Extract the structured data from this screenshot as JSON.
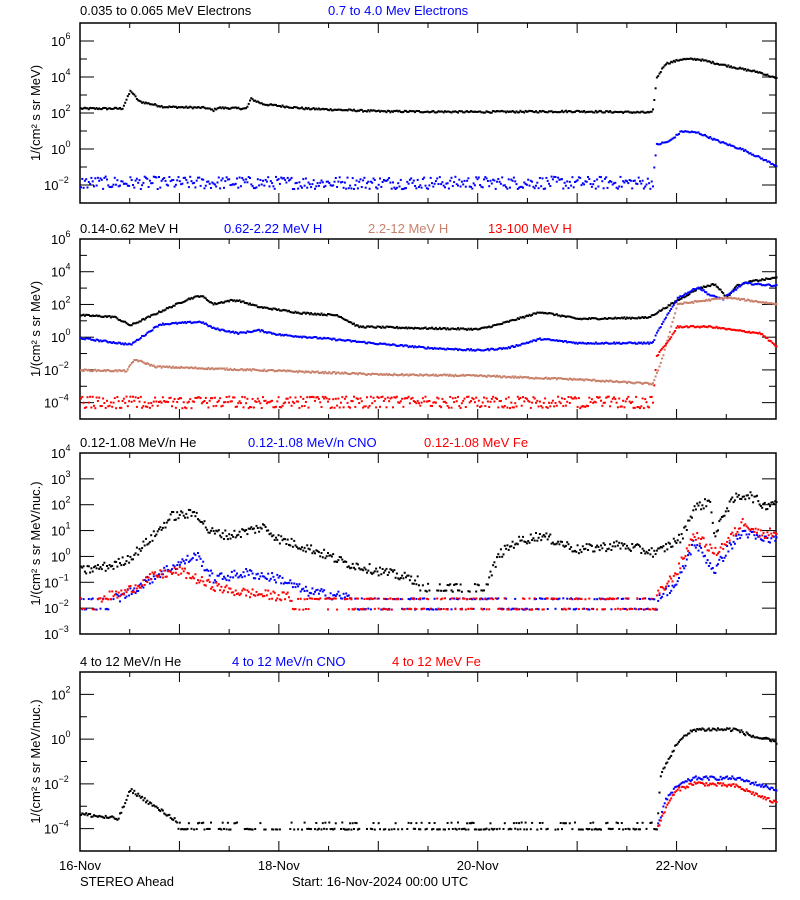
{
  "footer": {
    "spacecraft": "STEREO Ahead",
    "start": "Start: 16-Nov-2024 00:00 UTC"
  },
  "chart_data": [
    {
      "type": "scatter",
      "ylabel": "1/(cm² s sr MeV)",
      "yscale": "log",
      "ylim": [
        0.001,
        10000000
      ],
      "yticks_labeled": [
        6,
        4,
        2,
        0,
        -2
      ],
      "xlim": [
        "2024-11-16 00:00",
        "2024-11-23 00:00"
      ],
      "series": [
        {
          "name": "0.035 to 0.065 MeV Electrons",
          "color": "#000000",
          "points": [
            [
              "2024-11-16 00:00",
              200
            ],
            [
              "2024-11-16 10:00",
              200
            ],
            [
              "2024-11-16 12:00",
              2000
            ],
            [
              "2024-11-16 14:00",
              500
            ],
            [
              "2024-11-16 20:00",
              250
            ],
            [
              "2024-11-17 06:00",
              220
            ],
            [
              "2024-11-17 08:00",
              160
            ],
            [
              "2024-11-17 09:00",
              220
            ],
            [
              "2024-11-17 16:00",
              200
            ],
            [
              "2024-11-17 17:00",
              700
            ],
            [
              "2024-11-17 20:00",
              350
            ],
            [
              "2024-11-18 06:00",
              200
            ],
            [
              "2024-11-19 00:00",
              140
            ],
            [
              "2024-11-20 00:00",
              130
            ],
            [
              "2024-11-21 00:00",
              140
            ],
            [
              "2024-11-21 18:00",
              120
            ],
            [
              "2024-11-21 19:00",
              10000
            ],
            [
              "2024-11-21 21:00",
              60000
            ],
            [
              "2024-11-22 01:00",
              110000
            ],
            [
              "2024-11-22 05:00",
              110000
            ],
            [
              "2024-11-22 10:00",
              60000
            ],
            [
              "2024-11-22 16:00",
              30000
            ],
            [
              "2024-11-22 20:00",
              20000
            ],
            [
              "2024-11-23 00:00",
              9000
            ]
          ]
        },
        {
          "name": "0.7 to 4.0 Mev Electrons",
          "color": "#0000ff",
          "points": [
            [
              "2024-11-16 00:00",
              0.015
            ],
            [
              "2024-11-21 18:00",
              0.015
            ],
            [
              "2024-11-21 19:00",
              2
            ],
            [
              "2024-11-21 22:00",
              3
            ],
            [
              "2024-11-22 01:00",
              11
            ],
            [
              "2024-11-22 05:00",
              9
            ],
            [
              "2024-11-22 10:00",
              3
            ],
            [
              "2024-11-22 16:00",
              1
            ],
            [
              "2024-11-23 00:00",
              0.13
            ]
          ]
        }
      ]
    },
    {
      "type": "scatter",
      "ylabel": "1/(cm² s sr MeV)",
      "yscale": "log",
      "ylim": [
        1e-05,
        1000000
      ],
      "yticks_labeled": [
        6,
        4,
        2,
        0,
        -2,
        -4
      ],
      "xlim": [
        "2024-11-16 00:00",
        "2024-11-23 00:00"
      ],
      "series": [
        {
          "name": "0.14-0.62 MeV H",
          "color": "#000000",
          "points": [
            [
              "2024-11-16 00:00",
              25
            ],
            [
              "2024-11-16 08:00",
              20
            ],
            [
              "2024-11-16 12:00",
              6
            ],
            [
              "2024-11-16 19:00",
              40
            ],
            [
              "2024-11-17 02:00",
              250
            ],
            [
              "2024-11-17 05:00",
              400
            ],
            [
              "2024-11-17 08:00",
              120
            ],
            [
              "2024-11-17 12:00",
              200
            ],
            [
              "2024-11-17 14:00",
              200
            ],
            [
              "2024-11-17 19:00",
              80
            ],
            [
              "2024-11-18 05:00",
              35
            ],
            [
              "2024-11-18 14:00",
              25
            ],
            [
              "2024-11-18 19:00",
              5
            ],
            [
              "2024-11-19 12:00",
              4
            ],
            [
              "2024-11-20 00:00",
              3.5
            ],
            [
              "2024-11-20 05:00",
              7
            ],
            [
              "2024-11-20 15:00",
              40
            ],
            [
              "2024-11-21 00:00",
              15
            ],
            [
              "2024-11-21 17:00",
              18
            ],
            [
              "2024-11-21 22:00",
              100
            ],
            [
              "2024-11-22 05:00",
              1100
            ],
            [
              "2024-11-22 09:00",
              2000
            ],
            [
              "2024-11-22 12:00",
              300
            ],
            [
              "2024-11-22 14:00",
              1500
            ],
            [
              "2024-11-22 18:00",
              3000
            ],
            [
              "2024-11-23 00:00",
              5000
            ]
          ]
        },
        {
          "name": "0.62-2.22 MeV H",
          "color": "#0000ff",
          "points": [
            [
              "2024-11-16 00:00",
              1
            ],
            [
              "2024-11-16 12:00",
              0.4
            ],
            [
              "2024-11-16 19:00",
              7
            ],
            [
              "2024-11-17 05:00",
              10
            ],
            [
              "2024-11-17 08:00",
              4
            ],
            [
              "2024-11-17 14:00",
              2
            ],
            [
              "2024-11-17 19:00",
              3
            ],
            [
              "2024-11-18 00:00",
              1.6
            ],
            [
              "2024-11-18 12:00",
              0.9
            ],
            [
              "2024-11-19 00:00",
              0.45
            ],
            [
              "2024-11-19 12:00",
              0.25
            ],
            [
              "2024-11-20 00:00",
              0.18
            ],
            [
              "2024-11-20 07:00",
              0.25
            ],
            [
              "2024-11-20 15:00",
              0.9
            ],
            [
              "2024-11-21 00:00",
              0.5
            ],
            [
              "2024-11-21 18:00",
              0.5
            ],
            [
              "2024-11-21 19:00",
              2
            ],
            [
              "2024-11-22 00:00",
              280
            ],
            [
              "2024-11-22 05:00",
              1300
            ],
            [
              "2024-11-22 08:00",
              400
            ],
            [
              "2024-11-22 11:00",
              250
            ],
            [
              "2024-11-22 16:00",
              2300
            ],
            [
              "2024-11-23 00:00",
              1600
            ]
          ]
        },
        {
          "name": "2.2-12 MeV H",
          "color": "#c8806a",
          "points": [
            [
              "2024-11-16 00:00",
              0.011
            ],
            [
              "2024-11-16 11:00",
              0.01
            ],
            [
              "2024-11-16 13:00",
              0.05
            ],
            [
              "2024-11-16 18:00",
              0.018
            ],
            [
              "2024-11-17 00:00",
              0.016
            ],
            [
              "2024-11-18 00:00",
              0.01
            ],
            [
              "2024-11-19 00:00",
              0.006
            ],
            [
              "2024-11-20 00:00",
              0.005
            ],
            [
              "2024-11-21 00:00",
              0.003
            ],
            [
              "2024-11-21 18:00",
              0.0016
            ],
            [
              "2024-11-21 20:00",
              0.03
            ],
            [
              "2024-11-22 00:00",
              120
            ],
            [
              "2024-11-22 12:00",
              300
            ],
            [
              "2024-11-23 00:00",
              120
            ]
          ]
        },
        {
          "name": "13-100 MeV H",
          "color": "#ff0000",
          "points": [
            [
              "2024-11-16 00:00",
              0.0001
            ],
            [
              "2024-11-21 18:00",
              0.0001
            ],
            [
              "2024-11-21 19:00",
              0.08
            ],
            [
              "2024-11-21 22:00",
              0.8
            ],
            [
              "2024-11-22 00:00",
              5
            ],
            [
              "2024-11-22 08:00",
              5
            ],
            [
              "2024-11-22 14:00",
              3
            ],
            [
              "2024-11-22 20:00",
              2
            ],
            [
              "2024-11-23 00:00",
              0.3
            ]
          ]
        }
      ]
    },
    {
      "type": "scatter",
      "ylabel": "1/(cm² s sr MeV/nuc.)",
      "yscale": "log",
      "ylim": [
        0.001,
        10000
      ],
      "yticks_labeled": [
        4,
        3,
        2,
        1,
        0,
        -1,
        -2,
        -3
      ],
      "xlim": [
        "2024-11-16 00:00",
        "2024-11-23 00:00"
      ],
      "series": [
        {
          "name": "0.12-1.08 MeV/n He",
          "color": "#000000",
          "points": [
            [
              "2024-11-16 00:00",
              0.3
            ],
            [
              "2024-11-16 08:00",
              0.5
            ],
            [
              "2024-11-16 12:00",
              1
            ],
            [
              "2024-11-16 18:00",
              8
            ],
            [
              "2024-11-16 22:00",
              40
            ],
            [
              "2024-11-17 04:00",
              50
            ],
            [
              "2024-11-17 07:00",
              10
            ],
            [
              "2024-11-17 12:00",
              7
            ],
            [
              "2024-11-17 20:00",
              15
            ],
            [
              "2024-11-18 00:00",
              5
            ],
            [
              "2024-11-18 08:00",
              2
            ],
            [
              "2024-11-18 16:00",
              0.6
            ],
            [
              "2024-11-19 00:00",
              0.3
            ],
            [
              "2024-11-19 12:00",
              0.1
            ],
            [
              "2024-11-20 02:00",
              0.1
            ],
            [
              "2024-11-20 05:00",
              1.3
            ],
            [
              "2024-11-20 09:00",
              4
            ],
            [
              "2024-11-20 15:00",
              7
            ],
            [
              "2024-11-21 00:00",
              2
            ],
            [
              "2024-11-21 10:00",
              3
            ],
            [
              "2024-11-21 19:00",
              1.5
            ],
            [
              "2024-11-22 01:00",
              6
            ],
            [
              "2024-11-22 04:00",
              80
            ],
            [
              "2024-11-22 08:00",
              150
            ],
            [
              "2024-11-22 09:00",
              5
            ],
            [
              "2024-11-22 11:00",
              50
            ],
            [
              "2024-11-22 14:00",
              200
            ],
            [
              "2024-11-22 17:00",
              280
            ],
            [
              "2024-11-22 21:00",
              100
            ],
            [
              "2024-11-23 00:00",
              160
            ]
          ]
        },
        {
          "name": "0.12-1.08 MeV/n CNO",
          "color": "#0000ff",
          "points": [
            [
              "2024-11-16 00:00",
              0.02
            ],
            [
              "2024-11-16 10:00",
              0.03
            ],
            [
              "2024-11-16 20:00",
              0.3
            ],
            [
              "2024-11-17 04:00",
              1.2
            ],
            [
              "2024-11-17 08:00",
              0.15
            ],
            [
              "2024-11-17 16:00",
              0.25
            ],
            [
              "2024-11-18 00:00",
              0.15
            ],
            [
              "2024-11-18 06:00",
              0.05
            ],
            [
              "2024-11-19 00:00",
              0.02
            ],
            [
              "2024-11-21 18:00",
              0.02
            ],
            [
              "2024-11-22 00:00",
              0.1
            ],
            [
              "2024-11-22 04:00",
              4
            ],
            [
              "2024-11-22 09:00",
              0.3
            ],
            [
              "2024-11-22 12:00",
              2
            ],
            [
              "2024-11-22 16:00",
              10
            ],
            [
              "2024-11-22 20:00",
              5
            ],
            [
              "2024-11-23 00:00",
              5
            ]
          ]
        },
        {
          "name": "0.12-1.08 MeV Fe",
          "color": "#ff0000",
          "points": [
            [
              "2024-11-16 00:00",
              0.02
            ],
            [
              "2024-11-16 10:00",
              0.04
            ],
            [
              "2024-11-16 18:00",
              0.2
            ],
            [
              "2024-11-17 00:00",
              0.3
            ],
            [
              "2024-11-17 06:00",
              0.1
            ],
            [
              "2024-11-17 12:00",
              0.05
            ],
            [
              "2024-11-18 12:00",
              0.02
            ],
            [
              "2024-11-21 18:00",
              0.02
            ],
            [
              "2024-11-22 00:00",
              0.3
            ],
            [
              "2024-11-22 04:00",
              8
            ],
            [
              "2024-11-22 09:00",
              1.5
            ],
            [
              "2024-11-22 12:00",
              4
            ],
            [
              "2024-11-22 16:00",
              25
            ],
            [
              "2024-11-22 20:00",
              8
            ],
            [
              "2024-11-23 00:00",
              10
            ]
          ]
        }
      ]
    },
    {
      "type": "scatter",
      "ylabel": "1/(cm² s sr MeV/nuc.)",
      "yscale": "log",
      "ylim": [
        1e-05,
        1000
      ],
      "yticks_labeled": [
        2,
        0,
        -2,
        -4
      ],
      "xlim": [
        "2024-11-16 00:00",
        "2024-11-23 00:00"
      ],
      "xticks": [
        "16-Nov",
        "18-Nov",
        "20-Nov",
        "22-Nov"
      ],
      "series": [
        {
          "name": "4 to 12 MeV/n He",
          "color": "#000000",
          "points": [
            [
              "2024-11-16 00:00",
              0.0005
            ],
            [
              "2024-11-16 09:00",
              0.0003
            ],
            [
              "2024-11-16 12:00",
              0.006
            ],
            [
              "2024-11-16 18:00",
              0.001
            ],
            [
              "2024-11-17 00:00",
              0.0002
            ],
            [
              "2024-11-21 19:00",
              0.0001
            ],
            [
              "2024-11-21 20:00",
              0.03
            ],
            [
              "2024-11-22 00:00",
              0.8
            ],
            [
              "2024-11-22 04:00",
              3
            ],
            [
              "2024-11-22 14:00",
              3
            ],
            [
              "2024-11-22 18:00",
              1.5
            ],
            [
              "2024-11-23 00:00",
              0.8
            ]
          ]
        },
        {
          "name": "4 to 12 MeV/n CNO",
          "color": "#0000ff",
          "points": [
            [
              "2024-11-21 19:00",
              0.0001
            ],
            [
              "2024-11-21 21:00",
              0.002
            ],
            [
              "2024-11-22 00:00",
              0.009
            ],
            [
              "2024-11-22 04:00",
              0.02
            ],
            [
              "2024-11-22 14:00",
              0.02
            ],
            [
              "2024-11-23 00:00",
              0.006
            ]
          ]
        },
        {
          "name": "4 to 12 MeV Fe",
          "color": "#ff0000",
          "points": [
            [
              "2024-11-21 19:00",
              0.0001
            ],
            [
              "2024-11-21 22:00",
              0.002
            ],
            [
              "2024-11-22 00:00",
              0.006
            ],
            [
              "2024-11-22 04:00",
              0.012
            ],
            [
              "2024-11-22 14:00",
              0.009
            ],
            [
              "2024-11-23 00:00",
              0.0015
            ]
          ]
        }
      ]
    }
  ]
}
